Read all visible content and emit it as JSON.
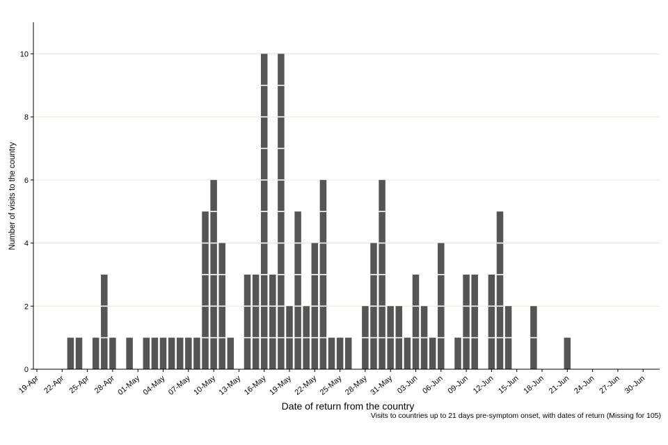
{
  "chart_data": {
    "type": "bar",
    "xlabel": "Date of return from the country",
    "ylabel": "Number of visits to the country",
    "footnote": "Visits to countries up to 21 days pre-symptom onset, with dates of return (Missing for 105)",
    "ylim": [
      0,
      11
    ],
    "yticks": [
      0,
      2,
      4,
      6,
      8,
      10
    ],
    "grid": "horizontal",
    "legend": "none",
    "bar_color": "#555555",
    "x_start": "19-Apr",
    "x_end": "30-Jun",
    "x_ticks": [
      "19-Apr",
      "22-Apr",
      "25-Apr",
      "28-Apr",
      "01-May",
      "04-May",
      "07-May",
      "10-May",
      "13-May",
      "16-May",
      "19-May",
      "22-May",
      "25-May",
      "28-May",
      "31-May",
      "03-Jun",
      "06-Jun",
      "09-Jun",
      "12-Jun",
      "15-Jun",
      "18-Jun",
      "21-Jun",
      "24-Jun",
      "27-Jun",
      "30-Jun"
    ],
    "categories": [
      "19-Apr",
      "20-Apr",
      "21-Apr",
      "22-Apr",
      "23-Apr",
      "24-Apr",
      "25-Apr",
      "26-Apr",
      "27-Apr",
      "28-Apr",
      "29-Apr",
      "30-Apr",
      "01-May",
      "02-May",
      "03-May",
      "04-May",
      "05-May",
      "06-May",
      "07-May",
      "08-May",
      "09-May",
      "10-May",
      "11-May",
      "12-May",
      "13-May",
      "14-May",
      "15-May",
      "16-May",
      "17-May",
      "18-May",
      "19-May",
      "20-May",
      "21-May",
      "22-May",
      "23-May",
      "24-May",
      "25-May",
      "26-May",
      "27-May",
      "28-May",
      "29-May",
      "30-May",
      "31-May",
      "01-Jun",
      "02-Jun",
      "03-Jun",
      "04-Jun",
      "05-Jun",
      "06-Jun",
      "07-Jun",
      "08-Jun",
      "09-Jun",
      "10-Jun",
      "11-Jun",
      "12-Jun",
      "13-Jun",
      "14-Jun",
      "15-Jun",
      "16-Jun",
      "17-Jun",
      "18-Jun",
      "19-Jun",
      "20-Jun",
      "21-Jun"
    ],
    "values": [
      0,
      0,
      0,
      0,
      1,
      1,
      0,
      1,
      3,
      1,
      0,
      1,
      0,
      1,
      1,
      1,
      1,
      1,
      1,
      1,
      5,
      6,
      4,
      1,
      0,
      3,
      3,
      10,
      3,
      10,
      2,
      5,
      2,
      4,
      6,
      1,
      1,
      1,
      0,
      2,
      4,
      6,
      2,
      2,
      1,
      3,
      2,
      1,
      4,
      0,
      1,
      3,
      3,
      0,
      3,
      5,
      2,
      0,
      0,
      2,
      0,
      0,
      0,
      1
    ]
  }
}
